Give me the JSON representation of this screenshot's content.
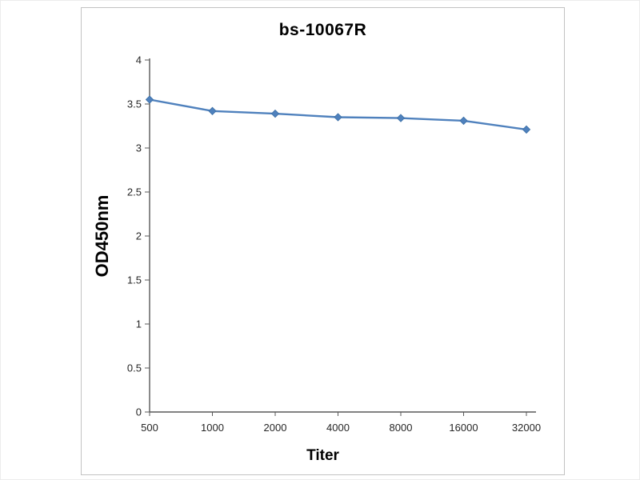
{
  "chart": {
    "title": "bs-10067R",
    "xlabel": "Titer",
    "ylabel": "OD450nm"
  },
  "chart_data": {
    "type": "line",
    "title": "bs-10067R",
    "xlabel": "Titer",
    "ylabel": "OD450nm",
    "categories": [
      "500",
      "1000",
      "2000",
      "4000",
      "8000",
      "16000",
      "32000"
    ],
    "values": [
      3.55,
      3.42,
      3.39,
      3.35,
      3.34,
      3.31,
      3.21
    ],
    "ylim": [
      0,
      4
    ],
    "ytick_step": 0.5,
    "grid": false,
    "legend": "none",
    "line_color": "#4f81bd",
    "marker": "diamond",
    "marker_color": "#4f81bd",
    "axis_color": "#595959"
  }
}
